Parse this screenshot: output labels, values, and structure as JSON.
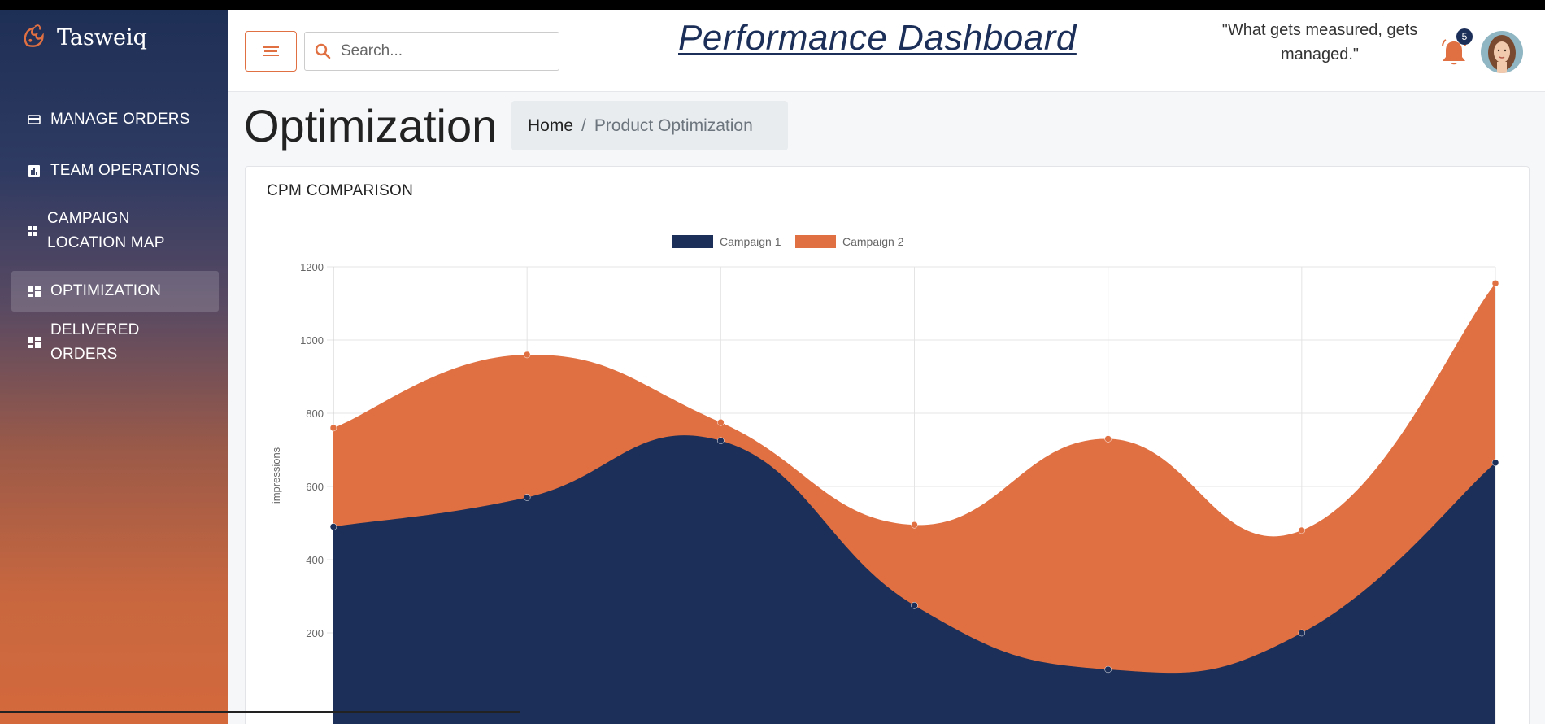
{
  "app": {
    "brand": "Tasweiq",
    "title": "Performance Dashboard",
    "quote": "\"What gets measured, gets managed.\""
  },
  "sidebar": {
    "items": [
      {
        "label": "MANAGE ORDERS",
        "icon": "credit-card-icon",
        "active": false
      },
      {
        "label": "TEAM OPERATIONS",
        "icon": "bar-chart-icon",
        "active": false
      },
      {
        "label": "CAMPAIGN LOCATION MAP",
        "icon": "grid-icon",
        "active": false
      },
      {
        "label": "OPTIMIZATION",
        "icon": "dashboard-icon",
        "active": true
      },
      {
        "label": "DELIVERED ORDERS",
        "icon": "dashboard-icon",
        "active": false
      }
    ]
  },
  "header": {
    "search_placeholder": "Search...",
    "notification_count": "5",
    "colors": {
      "accent": "#e07042",
      "primary": "#1c2f58"
    }
  },
  "page": {
    "title": "Optimization",
    "breadcrumb": {
      "home": "Home",
      "separator": "/",
      "current": "Product Optimization"
    }
  },
  "card": {
    "title": "CPM COMPARISON"
  },
  "chart_data": {
    "type": "area",
    "title": "",
    "ylabel": "impressions",
    "xlabel": "",
    "ylim": [
      200,
      1200
    ],
    "yticks": [
      200,
      400,
      600,
      800,
      1000,
      1200
    ],
    "grid": true,
    "legend_position": "top",
    "x": [
      0,
      1,
      2,
      3,
      4,
      5,
      6
    ],
    "series": [
      {
        "name": "Campaign 1",
        "color": "#1c2f58",
        "values": [
          490,
          570,
          725,
          275,
          100,
          200,
          665
        ]
      },
      {
        "name": "Campaign 2",
        "color": "#e07042",
        "values": [
          760,
          960,
          775,
          495,
          730,
          480,
          1155
        ]
      }
    ]
  }
}
